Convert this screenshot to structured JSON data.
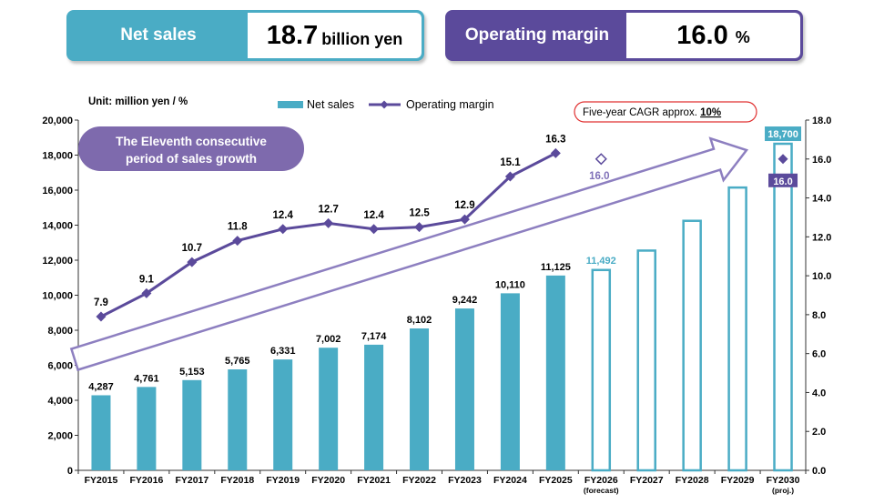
{
  "kpis": {
    "net_sales": {
      "label": "Net sales",
      "value": "18.7",
      "unit": "billion yen",
      "color": "#4aacc5"
    },
    "operating_margin": {
      "label": "Operating margin",
      "value": "16.0",
      "unit": "%",
      "color": "#5b4a9b"
    }
  },
  "chart_data": {
    "type": "bar",
    "unit_label": "Unit: million yen / %",
    "categories": [
      "FY2015",
      "FY2016",
      "FY2017",
      "FY2018",
      "FY2019",
      "FY2020",
      "FY2021",
      "FY2022",
      "FY2023",
      "FY2024",
      "FY2025",
      "FY2026",
      "FY2027",
      "FY2028",
      "FY2029",
      "FY2030"
    ],
    "category_sublabels": [
      "",
      "",
      "",
      "",
      "",
      "",
      "",
      "",
      "",
      "",
      "",
      "(forecast)",
      "",
      "",
      "",
      "(proj.)"
    ],
    "series": [
      {
        "name": "Net sales",
        "axis": "left",
        "color": "#4aacc5",
        "values": [
          4287,
          4761,
          5153,
          5765,
          6331,
          7002,
          7174,
          8102,
          9242,
          10110,
          11125,
          11492,
          12600,
          14300,
          16200,
          18700
        ],
        "labels": [
          "4,287",
          "4,761",
          "5,153",
          "5,765",
          "6,331",
          "7,002",
          "7,174",
          "8,102",
          "9,242",
          "10,110",
          "11,125",
          "11,492",
          "",
          "",
          "",
          "18,700"
        ],
        "styles": [
          "actual",
          "actual",
          "actual",
          "actual",
          "actual",
          "actual",
          "actual",
          "actual",
          "actual",
          "actual",
          "actual",
          "forecast",
          "plan",
          "plan",
          "plan",
          "target"
        ]
      },
      {
        "name": "Operating margin",
        "axis": "right",
        "color": "#5b4a9b",
        "values": [
          7.9,
          9.1,
          10.7,
          11.8,
          12.4,
          12.7,
          12.4,
          12.5,
          12.9,
          15.1,
          16.3,
          16.0,
          null,
          null,
          null,
          16.0
        ],
        "labels": [
          "7.9",
          "9.1",
          "10.7",
          "11.8",
          "12.4",
          "12.7",
          "12.4",
          "12.5",
          "12.9",
          "15.1",
          "16.3",
          "16.0",
          "",
          "",
          "",
          "16.0"
        ],
        "styles": [
          "actual",
          "actual",
          "actual",
          "actual",
          "actual",
          "actual",
          "actual",
          "actual",
          "actual",
          "actual",
          "actual",
          "forecast",
          "",
          "",
          "",
          "target"
        ]
      }
    ],
    "ylim_left": [
      0,
      20000
    ],
    "ylim_right": [
      0,
      18
    ],
    "yticks_left": [
      "0",
      "2,000",
      "4,000",
      "6,000",
      "8,000",
      "10,000",
      "12,000",
      "14,000",
      "16,000",
      "18,000",
      "20,000"
    ],
    "yticks_right": [
      "0.0",
      "2.0",
      "4.0",
      "6.0",
      "8.0",
      "10.0",
      "12.0",
      "14.0",
      "16.0",
      "18.0"
    ],
    "legend_position": "top-center",
    "grid": false,
    "annotations": {
      "badge": "The Eleventh consecutive period of sales growth",
      "cagr_prefix": "Five-year CAGR approx. ",
      "cagr_value": "10%"
    }
  }
}
